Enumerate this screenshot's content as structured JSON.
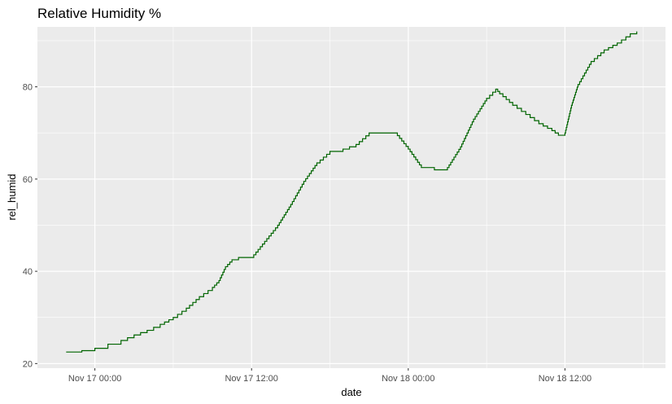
{
  "chart_data": {
    "type": "line",
    "title": "Relative Humidity %",
    "xlabel": "date",
    "ylabel": "rel_humid",
    "x_unit": "hours",
    "x_ticks": [
      {
        "hours": 0,
        "label": "Nov 17 00:00"
      },
      {
        "hours": 12,
        "label": "Nov 17 12:00"
      },
      {
        "hours": 24,
        "label": "Nov 18 00:00"
      },
      {
        "hours": 36,
        "label": "Nov 18 12:00"
      }
    ],
    "y_ticks": [
      20,
      40,
      60,
      80
    ],
    "xlim": [
      -4.4,
      43.7
    ],
    "ylim": [
      19,
      93
    ],
    "grid": true,
    "series": [
      {
        "color": "#006400",
        "points": [
          [
            -2.2,
            22.5
          ],
          [
            -1.0,
            22.8
          ],
          [
            0.0,
            23.3
          ],
          [
            1.0,
            24.2
          ],
          [
            2.0,
            25.0
          ],
          [
            3.0,
            26.2
          ],
          [
            4.0,
            27.2
          ],
          [
            5.0,
            28.5
          ],
          [
            6.0,
            30.0
          ],
          [
            7.0,
            32.0
          ],
          [
            8.0,
            34.5
          ],
          [
            9.0,
            36.5
          ],
          [
            9.5,
            38.0
          ],
          [
            10.0,
            41.0
          ],
          [
            10.5,
            42.5
          ],
          [
            11.0,
            43.0
          ],
          [
            12.0,
            43.0
          ],
          [
            13.0,
            46.5
          ],
          [
            14.0,
            50.0
          ],
          [
            15.0,
            54.5
          ],
          [
            16.0,
            59.5
          ],
          [
            17.0,
            63.5
          ],
          [
            18.0,
            66.0
          ],
          [
            19.0,
            66.5
          ],
          [
            20.0,
            67.5
          ],
          [
            21.0,
            70.0
          ],
          [
            22.0,
            70.0
          ],
          [
            23.0,
            70.0
          ],
          [
            24.0,
            66.5
          ],
          [
            25.0,
            62.5
          ],
          [
            26.0,
            62.0
          ],
          [
            27.0,
            62.5
          ],
          [
            28.0,
            67.0
          ],
          [
            29.0,
            73.0
          ],
          [
            30.0,
            77.5
          ],
          [
            30.7,
            79.5
          ],
          [
            31.0,
            78.5
          ],
          [
            32.0,
            76.0
          ],
          [
            33.0,
            74.0
          ],
          [
            34.0,
            72.0
          ],
          [
            35.0,
            70.5
          ],
          [
            35.5,
            69.5
          ],
          [
            36.0,
            70.0
          ],
          [
            36.5,
            76.0
          ],
          [
            37.0,
            80.5
          ],
          [
            38.0,
            85.5
          ],
          [
            39.0,
            88.0
          ],
          [
            40.0,
            89.5
          ],
          [
            41.0,
            91.5
          ],
          [
            41.5,
            92.0
          ]
        ]
      }
    ]
  }
}
